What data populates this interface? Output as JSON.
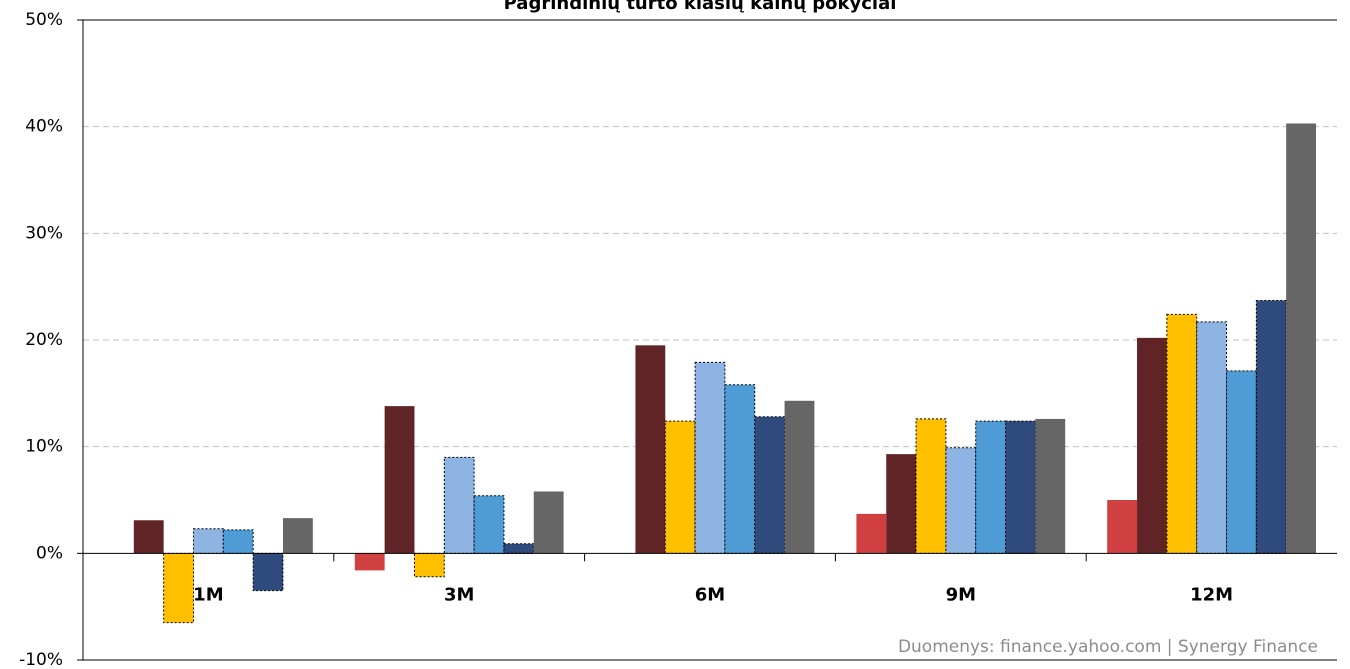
{
  "chart_data": {
    "type": "bar",
    "title": "Pagrindinių turto klasių kainų pokyčiai",
    "annotation": "Duomenys: finance.yahoo.com  | Synergy Finance",
    "categories": [
      "1M",
      "3M",
      "6M",
      "9M",
      "12M"
    ],
    "series": [
      {
        "color": "#d04040",
        "values": [
          0,
          -1.6,
          0,
          3.7,
          5.0
        ]
      },
      {
        "color": "#612426",
        "values": [
          3.1,
          13.8,
          19.5,
          9.3,
          20.2
        ]
      },
      {
        "color": "#ffc000",
        "outline": "dashed",
        "values": [
          -6.5,
          -2.2,
          12.4,
          12.6,
          22.4
        ]
      },
      {
        "color": "#8db4e2",
        "outline": "dashed",
        "values": [
          2.3,
          9.0,
          17.9,
          9.9,
          21.7
        ]
      },
      {
        "color": "#4f9bd6",
        "outline": "dashed",
        "values": [
          2.2,
          5.4,
          15.8,
          12.4,
          17.1
        ]
      },
      {
        "color": "#2f4a7d",
        "outline": "dashed",
        "values": [
          -3.5,
          0.9,
          12.8,
          12.4,
          23.7
        ]
      },
      {
        "color": "#666666",
        "values": [
          3.3,
          5.8,
          14.3,
          12.6,
          40.3
        ]
      }
    ],
    "ylim": [
      -10,
      50
    ],
    "yticks": [
      {
        "value": -10,
        "label": "-10%"
      },
      {
        "value": 0,
        "label": "0%"
      },
      {
        "value": 10,
        "label": "10%"
      },
      {
        "value": 20,
        "label": "20%"
      },
      {
        "value": 30,
        "label": "30%"
      },
      {
        "value": 40,
        "label": "40%"
      },
      {
        "value": 50,
        "label": "50%"
      }
    ],
    "grid": true
  }
}
